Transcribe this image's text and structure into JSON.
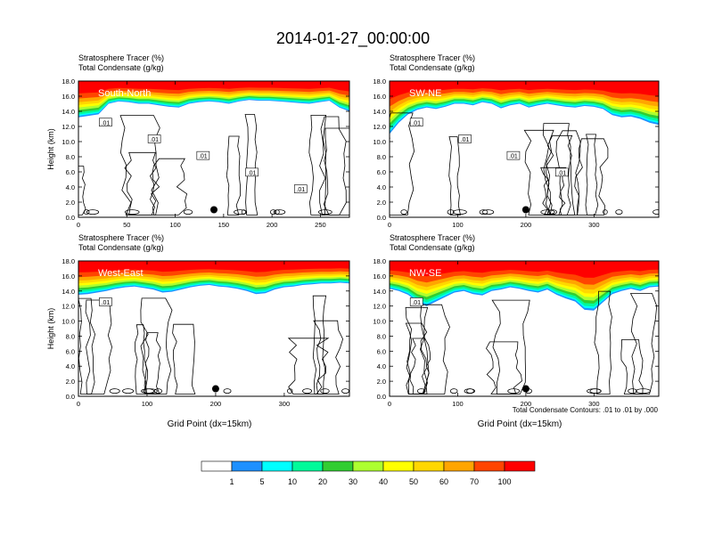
{
  "title": "2014-01-27_00:00:00",
  "legend": {
    "levels": [
      "1",
      "5",
      "10",
      "20",
      "30",
      "40",
      "50",
      "60",
      "70",
      "100"
    ],
    "colors": [
      "#ffffff",
      "#1e90ff",
      "#00ffff",
      "#00fa9a",
      "#32cd32",
      "#adff2f",
      "#ffff00",
      "#ffd700",
      "#ffa500",
      "#ff4500",
      "#ff0000"
    ]
  },
  "footnote": "Total Condensate Contours: .01 to .01 by .000",
  "chart_data": [
    {
      "type": "heatmap",
      "name": "South-North",
      "subtitle_lines": [
        "Stratosphere Tracer   (%)",
        "Total Condensate   (g/kg)"
      ],
      "ylabel": "Height (km)",
      "xlabel": "",
      "xlim": [
        0,
        280
      ],
      "xticks": [
        "0",
        "50",
        "100",
        "150",
        "200",
        "250"
      ],
      "xtick_values": [
        0,
        50,
        100,
        150,
        200,
        250
      ],
      "ylim": [
        0,
        18
      ],
      "yticks": [
        "0.0",
        "2.0",
        "4.0",
        "6.0",
        "8.0",
        "10.0",
        "12.0",
        "14.0",
        "16.0",
        "18.0"
      ],
      "tracer_bottom_km": [
        13.2,
        13.4,
        13.6,
        15.0,
        15.3,
        15.2,
        15.0,
        15.0,
        14.8,
        14.6,
        14.5,
        15.0,
        15.2,
        15.3,
        15.2,
        15.0,
        15.3,
        15.5,
        15.4,
        15.4,
        15.3,
        15.2,
        15.1,
        15.0,
        15.2,
        15.4,
        14.5,
        14.0
      ],
      "contour_labels": [
        ".01",
        ".01",
        ".01",
        ".01",
        ".01"
      ],
      "marker_x": 140,
      "marker_y": 1.0
    },
    {
      "type": "heatmap",
      "name": "SW-NE",
      "subtitle_lines": [
        "Stratosphere Tracer   (%)",
        "Total Condensate   (g/kg)"
      ],
      "ylabel": "",
      "xlabel": "",
      "xlim": [
        0,
        395
      ],
      "xticks": [
        "0",
        "100",
        "200",
        "300"
      ],
      "xtick_values": [
        0,
        100,
        200,
        300
      ],
      "ylim": [
        0,
        18
      ],
      "yticks": [
        "0.0",
        "2.0",
        "4.0",
        "6.0",
        "8.0",
        "10.0",
        "12.0",
        "14.0",
        "16.0",
        "18.0"
      ],
      "tracer_bottom_km": [
        11.0,
        12.5,
        13.6,
        14.2,
        14.5,
        14.3,
        14.6,
        15.0,
        15.0,
        14.8,
        15.2,
        15.0,
        14.4,
        14.8,
        15.0,
        14.5,
        14.8,
        15.0,
        14.8,
        14.6,
        14.5,
        14.7,
        14.6,
        14.3,
        13.5,
        13.2,
        13.3,
        13.0,
        12.5,
        12.2
      ],
      "contour_labels": [
        ".01",
        ".01",
        ".01",
        ".01"
      ],
      "marker_x": 200,
      "marker_y": 1.0
    },
    {
      "type": "heatmap",
      "name": "West-East",
      "subtitle_lines": [
        "Stratosphere Tracer   (%)",
        "Total Condensate   (g/kg)"
      ],
      "ylabel": "Height (km)",
      "xlabel": "Grid Point (dx=15km)",
      "xlim": [
        0,
        395
      ],
      "xticks": [
        "0",
        "100",
        "200",
        "300"
      ],
      "xtick_values": [
        0,
        100,
        200,
        300
      ],
      "ylim": [
        0,
        18
      ],
      "yticks": [
        "0.0",
        "2.0",
        "4.0",
        "6.0",
        "8.0",
        "10.0",
        "12.0",
        "14.0",
        "16.0",
        "18.0"
      ],
      "tracer_bottom_km": [
        13.5,
        13.6,
        13.8,
        14.0,
        14.3,
        14.5,
        14.6,
        14.4,
        14.2,
        13.8,
        13.9,
        14.2,
        14.5,
        14.7,
        14.8,
        14.6,
        14.5,
        14.3,
        14.0,
        13.6,
        13.7,
        14.2,
        14.5,
        14.6,
        14.8,
        14.9,
        15.0,
        15.0,
        15.1,
        15.0
      ],
      "contour_labels": [
        ".01"
      ],
      "marker_x": 200,
      "marker_y": 1.0
    },
    {
      "type": "heatmap",
      "name": "NW-SE",
      "subtitle_lines": [
        "Stratosphere Tracer   (%)",
        "Total Condensate   (g/kg)"
      ],
      "ylabel": "",
      "xlabel": "Grid Point (dx=15km)",
      "xlim": [
        0,
        395
      ],
      "xticks": [
        "0",
        "100",
        "200",
        "300"
      ],
      "xtick_values": [
        0,
        100,
        200,
        300
      ],
      "ylim": [
        0,
        18
      ],
      "yticks": [
        "0.0",
        "2.0",
        "4.0",
        "6.0",
        "8.0",
        "10.0",
        "12.0",
        "14.0",
        "16.0",
        "18.0"
      ],
      "tracer_bottom_km": [
        14.3,
        14.0,
        13.5,
        12.5,
        12.0,
        12.6,
        13.2,
        13.8,
        14.0,
        13.6,
        13.4,
        14.0,
        14.2,
        14.5,
        14.3,
        14.0,
        13.8,
        14.2,
        13.5,
        13.0,
        12.6,
        11.5,
        11.4,
        12.5,
        13.6,
        14.0,
        14.3,
        14.0,
        14.5,
        14.6
      ],
      "contour_labels": [
        ".01"
      ],
      "marker_x": 200,
      "marker_y": 1.0
    }
  ]
}
